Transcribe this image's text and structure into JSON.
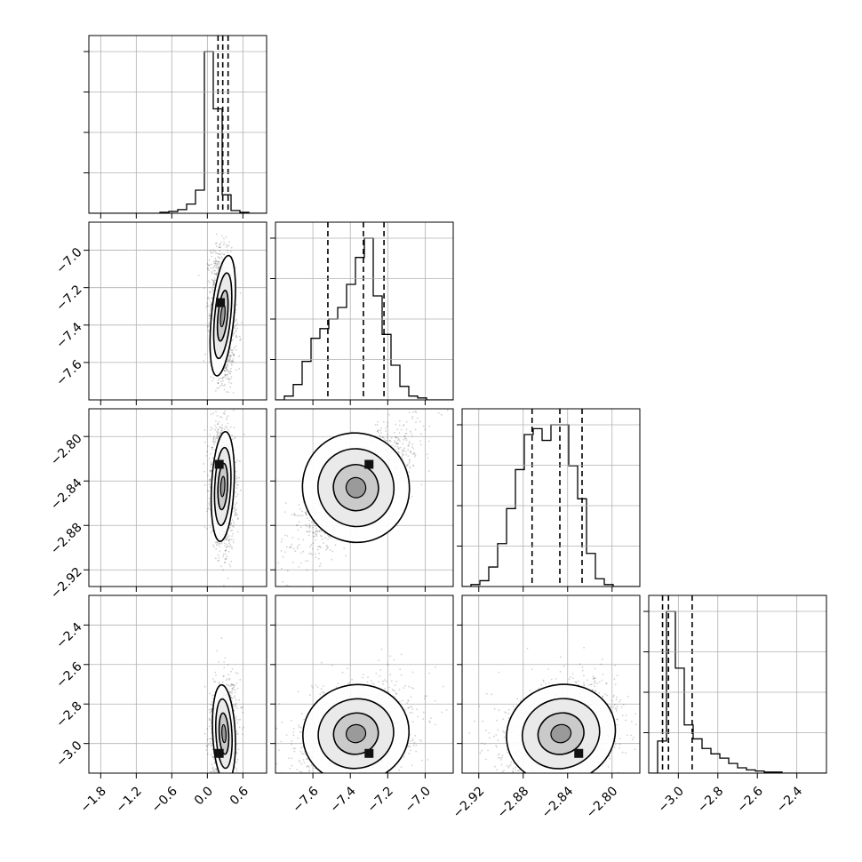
{
  "chart_data": {
    "type": "corner",
    "parameters": [
      "",
      "",
      "",
      ""
    ],
    "ranges": [
      [
        -2.0,
        1.0
      ],
      [
        -7.8,
        -6.85
      ],
      [
        -2.935,
        -2.775
      ],
      [
        -3.15,
        -2.25
      ]
    ],
    "ticks": [
      {
        "values": [
          -1.8,
          -1.2,
          -0.6,
          0.0,
          0.6
        ],
        "labels": [
          "−1.8",
          "−1.2",
          "−0.6",
          "0.0",
          "0.6"
        ]
      },
      {
        "values": [
          -7.6,
          -7.4,
          -7.2,
          -7.0
        ],
        "labels": [
          "−7.6",
          "−7.4",
          "−7.2",
          "−7.0"
        ]
      },
      {
        "values": [
          -2.92,
          -2.88,
          -2.84,
          -2.8
        ],
        "labels": [
          "−2.92",
          "−2.88",
          "−2.84",
          "−2.80"
        ]
      },
      {
        "values": [
          -3.0,
          -2.8,
          -2.6,
          -2.4
        ],
        "labels": [
          "−3.0",
          "−2.8",
          "−2.6",
          "−2.4"
        ]
      }
    ],
    "quantiles": [
      [
        0.18,
        0.26,
        0.35
      ],
      [
        -7.52,
        -7.33,
        -7.22
      ],
      [
        -2.872,
        -2.847,
        -2.827
      ],
      [
        -3.08,
        -3.05,
        -2.93
      ]
    ],
    "histograms": [
      {
        "edges_start": -2.0,
        "bin_width": 0.15,
        "counts": [
          0,
          0,
          0,
          0,
          0,
          0,
          0,
          0,
          1,
          2,
          4,
          10,
          25,
          175,
          113,
          20,
          3,
          1,
          0,
          0
        ]
      },
      {
        "edges_start": -7.8,
        "bin_width": 0.0475,
        "counts": [
          0,
          2,
          8,
          20,
          32,
          37,
          42,
          48,
          60,
          74,
          84,
          54,
          34,
          18,
          7,
          2,
          1,
          0,
          0,
          0
        ]
      },
      {
        "edges_start": -2.935,
        "bin_width": 0.008,
        "counts": [
          0,
          1,
          3,
          10,
          22,
          40,
          60,
          78,
          81,
          75,
          83,
          83,
          62,
          45,
          17,
          4,
          1,
          0,
          0,
          0
        ]
      },
      {
        "edges_start": -3.15,
        "bin_width": 0.045,
        "counts": [
          0,
          30,
          151,
          98,
          45,
          32,
          23,
          18,
          14,
          9,
          5,
          3,
          2,
          1,
          1,
          0,
          0,
          0,
          0,
          0
        ]
      }
    ],
    "pairs": [
      {
        "x": 0,
        "y": 1,
        "center": [
          0.26,
          -7.35
        ],
        "spread": [
          0.1,
          0.17
        ],
        "rho": -0.2,
        "peak": [
          0.22,
          -7.28
        ]
      },
      {
        "x": 0,
        "y": 2,
        "center": [
          0.26,
          -2.845
        ],
        "spread": [
          0.1,
          0.026
        ],
        "rho": -0.1,
        "peak": [
          0.2,
          -2.825
        ]
      },
      {
        "x": 0,
        "y": 3,
        "center": [
          0.28,
          -2.95
        ],
        "spread": [
          0.1,
          0.13
        ],
        "rho": 0.1,
        "peak": [
          0.2,
          -3.05
        ]
      },
      {
        "x": 1,
        "y": 2,
        "center": [
          -7.37,
          -2.846
        ],
        "spread": [
          0.15,
          0.026
        ],
        "rho": 0.75,
        "peak": [
          -7.3,
          -2.825
        ]
      },
      {
        "x": 1,
        "y": 3,
        "center": [
          -7.37,
          -2.95
        ],
        "spread": [
          0.15,
          0.13
        ],
        "rho": 0.25,
        "peak": [
          -7.3,
          -3.05
        ]
      },
      {
        "x": 2,
        "y": 3,
        "center": [
          -2.846,
          -2.95
        ],
        "spread": [
          0.026,
          0.13
        ],
        "rho": 0.3,
        "peak": [
          -2.83,
          -3.05
        ]
      }
    ],
    "grid": true,
    "color_scheme": {
      "line": "#000000",
      "grid": "#b0b0b0",
      "points": "#000000",
      "fill": "#ffffff"
    }
  }
}
